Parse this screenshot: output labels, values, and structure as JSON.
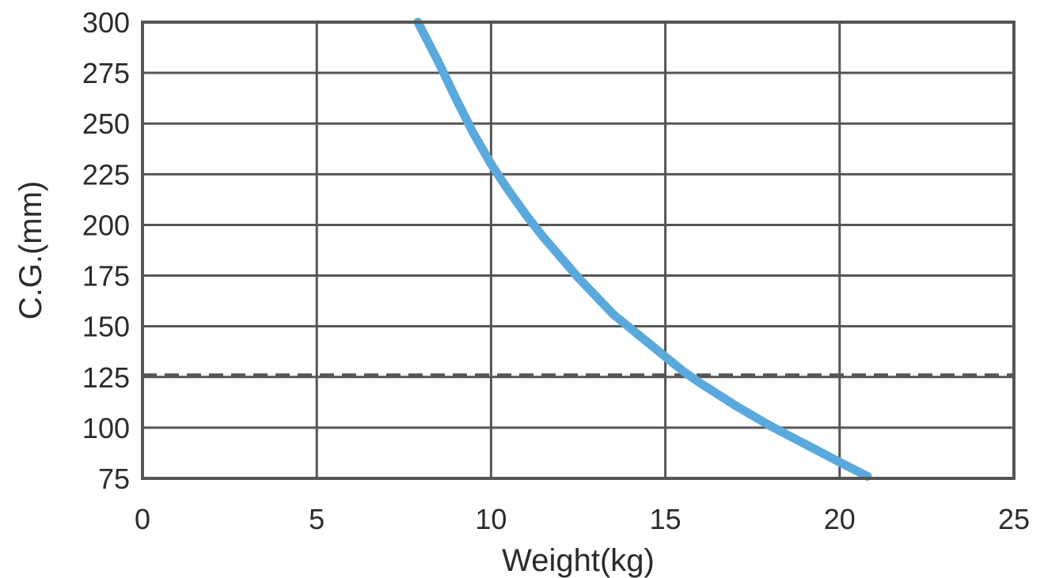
{
  "chart_data": {
    "type": "line",
    "title": "",
    "xlabel": "Weight(kg)",
    "ylabel": "C.G.(mm)",
    "xlim": [
      0,
      25
    ],
    "ylim": [
      75,
      300
    ],
    "x_ticks": [
      0,
      5,
      10,
      15,
      20,
      25
    ],
    "y_ticks": [
      75,
      100,
      125,
      150,
      175,
      200,
      225,
      250,
      275,
      300
    ],
    "grid": true,
    "series": [
      {
        "color": "#5aa9dd",
        "points": [
          {
            "x": 7.9,
            "y": 300
          },
          {
            "x": 8.5,
            "y": 280
          },
          {
            "x": 9.0,
            "y": 262
          },
          {
            "x": 9.5,
            "y": 245
          },
          {
            "x": 10.0,
            "y": 230
          },
          {
            "x": 10.5,
            "y": 217
          },
          {
            "x": 11.0,
            "y": 205
          },
          {
            "x": 11.5,
            "y": 194
          },
          {
            "x": 12.0,
            "y": 184
          },
          {
            "x": 12.5,
            "y": 174
          },
          {
            "x": 13.0,
            "y": 165
          },
          {
            "x": 13.5,
            "y": 156
          },
          {
            "x": 14.0,
            "y": 149
          },
          {
            "x": 14.5,
            "y": 142
          },
          {
            "x": 15.0,
            "y": 135
          },
          {
            "x": 15.5,
            "y": 128
          },
          {
            "x": 16.0,
            "y": 122
          },
          {
            "x": 17.0,
            "y": 111
          },
          {
            "x": 18.0,
            "y": 101
          },
          {
            "x": 19.0,
            "y": 92
          },
          {
            "x": 20.0,
            "y": 83
          },
          {
            "x": 20.8,
            "y": 76
          }
        ]
      }
    ],
    "reference_line": {
      "axis": "y",
      "value": 126,
      "style": "dashed",
      "color": "#555555"
    }
  }
}
